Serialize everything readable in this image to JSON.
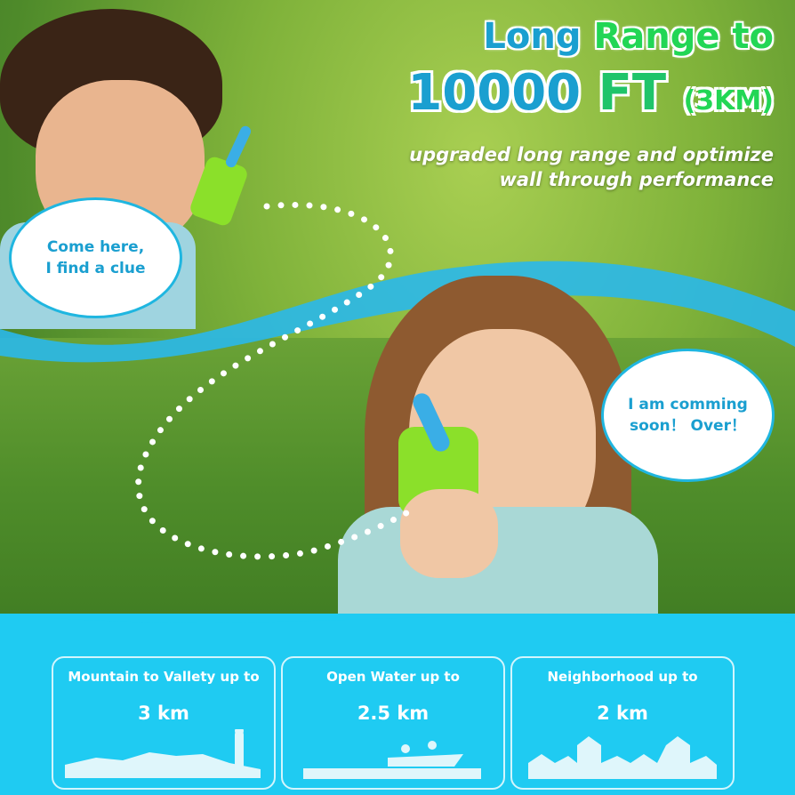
{
  "headline": {
    "line1_a": "Long",
    "line1_b": "Range to",
    "line2_a": "10000",
    "line2_b": "FT",
    "line2_c": "(3KM)"
  },
  "subtitle": {
    "line1": "upgraded long range and optimize",
    "line2": "wall through performance"
  },
  "bubbles": {
    "boy": {
      "line1": "Come here,",
      "line2": "I find a clue"
    },
    "girl": {
      "line1": "I am comming",
      "line2": "soon！ Over！"
    }
  },
  "cards": [
    {
      "heading": "Mountain to Vallety up to",
      "value": "3 km",
      "icon": "mountain-hiker-icon"
    },
    {
      "heading": "Open Water up to",
      "value": "2.5 km",
      "icon": "boat-water-icon"
    },
    {
      "heading": "Neighborhood up to",
      "value": "2 km",
      "icon": "houses-icon"
    }
  ],
  "colors": {
    "blue": "#1a9fd0",
    "green": "#22d655",
    "panel": "#1fcbf2"
  }
}
